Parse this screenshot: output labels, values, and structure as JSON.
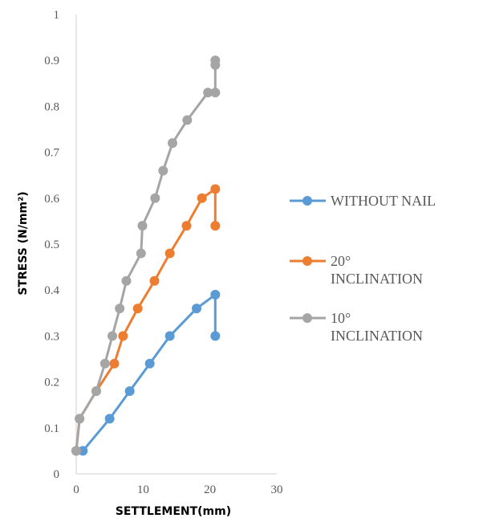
{
  "chart_data": {
    "type": "line",
    "title": "",
    "xlabel": "SETTLEMENT(mm)",
    "ylabel": "STRESS (N/mm²)",
    "xlim": [
      0,
      30
    ],
    "ylim": [
      0,
      1
    ],
    "x_ticks": [
      "0",
      "10",
      "20",
      "30"
    ],
    "y_ticks": [
      "0",
      "0.1",
      "0.2",
      "0.3",
      "0.4",
      "0.5",
      "0.6",
      "0.7",
      "0.8",
      "0.9",
      "1"
    ],
    "grid": false,
    "legend_position": "right",
    "series": [
      {
        "name": "WITHOUT NAIL",
        "color": "#5b9bd5",
        "points": [
          [
            1,
            0.05
          ],
          [
            5,
            0.12
          ],
          [
            8,
            0.18
          ],
          [
            11,
            0.24
          ],
          [
            14,
            0.3
          ],
          [
            18,
            0.36
          ],
          [
            20.8,
            0.39
          ],
          [
            20.8,
            0.3
          ]
        ]
      },
      {
        "name": "20° INCLINATION",
        "color": "#ed7d31",
        "points": [
          [
            0,
            0.05
          ],
          [
            0.5,
            0.12
          ],
          [
            3,
            0.18
          ],
          [
            5.7,
            0.24
          ],
          [
            7,
            0.3
          ],
          [
            9.2,
            0.36
          ],
          [
            11.7,
            0.42
          ],
          [
            14,
            0.48
          ],
          [
            16.5,
            0.54
          ],
          [
            18.8,
            0.6
          ],
          [
            20.8,
            0.62
          ],
          [
            20.8,
            0.54
          ]
        ]
      },
      {
        "name": "10° INCLINATION",
        "color": "#a5a5a5",
        "points": [
          [
            0,
            0.05
          ],
          [
            0.5,
            0.12
          ],
          [
            3,
            0.18
          ],
          [
            4.3,
            0.24
          ],
          [
            5.4,
            0.3
          ],
          [
            6.5,
            0.36
          ],
          [
            7.5,
            0.42
          ],
          [
            9.7,
            0.48
          ],
          [
            9.9,
            0.54
          ],
          [
            11.8,
            0.6
          ],
          [
            13,
            0.66
          ],
          [
            14.4,
            0.72
          ],
          [
            16.6,
            0.77
          ],
          [
            19.7,
            0.83
          ],
          [
            20.8,
            0.83
          ],
          [
            20.8,
            0.89
          ],
          [
            20.8,
            0.9
          ]
        ]
      }
    ]
  },
  "legend": [
    {
      "lines": [
        "WITHOUT NAIL"
      ],
      "color": "#5b9bd5"
    },
    {
      "lines": [
        "20°",
        "INCLINATION"
      ],
      "color": "#ed7d31"
    },
    {
      "lines": [
        "10°",
        "INCLINATION"
      ],
      "color": "#a5a5a5"
    }
  ]
}
